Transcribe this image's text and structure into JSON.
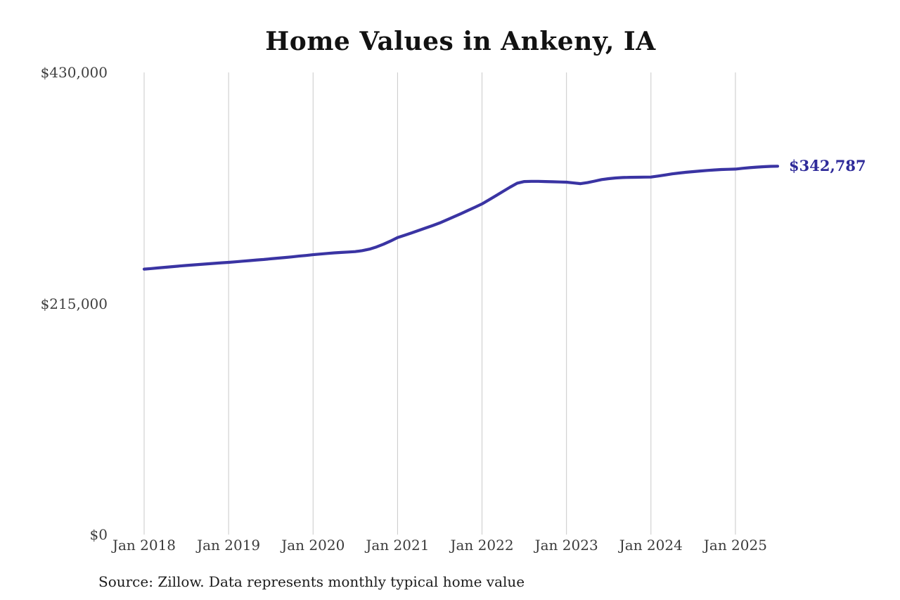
{
  "title": "Home Values in Ankeny, IA",
  "end_label": "$342,787",
  "source_note": "Source: Zillow. Data represents monthly typical home value",
  "colors": {
    "line": "#3a34a3",
    "end_label": "#2e2a99",
    "gridline": "#c9c9c9",
    "axis_text": "#3f3f3f",
    "title_text": "#121212"
  },
  "chart_data": {
    "type": "line",
    "title": "Home Values in Ankeny, IA",
    "xlabel": "",
    "ylabel": "",
    "ylim": [
      0,
      430000
    ],
    "grid": "vertical-only",
    "legend_position": "none",
    "frequency": "monthly",
    "start_month": "2018-01",
    "end_month": "2025-07",
    "latest_value": 342787,
    "x_tick_labels": [
      "Jan 2018",
      "Jan 2019",
      "Jan 2020",
      "Jan 2021",
      "Jan 2022",
      "Jan 2023",
      "Jan 2024",
      "Jan 2025"
    ],
    "y_ticks": [
      {
        "label": "$0",
        "value": 0
      },
      {
        "label": "$215,000",
        "value": 215000
      },
      {
        "label": "$430,000",
        "value": 430000
      }
    ],
    "series": [
      {
        "name": "Typical home value",
        "values": [
          247000,
          247500,
          248100,
          248700,
          249300,
          249900,
          250400,
          250900,
          251400,
          251900,
          252400,
          252900,
          253300,
          253800,
          254400,
          254900,
          255500,
          256000,
          256600,
          257200,
          257800,
          258400,
          259100,
          259700,
          260400,
          261000,
          261600,
          262100,
          262500,
          262900,
          263300,
          264200,
          265600,
          267600,
          270200,
          273100,
          276300,
          278500,
          280700,
          283000,
          285300,
          287600,
          290000,
          292800,
          295700,
          298600,
          301600,
          304600,
          307700,
          311500,
          315400,
          319400,
          323300,
          327000,
          328500,
          328700,
          328700,
          328500,
          328300,
          328100,
          327900,
          327200,
          326500,
          327500,
          328900,
          330300,
          331200,
          331800,
          332200,
          332400,
          332500,
          332600,
          332700,
          333600,
          334600,
          335600,
          336400,
          337100,
          337700,
          338300,
          338800,
          339300,
          339700,
          339900,
          340100,
          340800,
          341400,
          341900,
          342300,
          342600,
          342787
        ]
      }
    ]
  }
}
